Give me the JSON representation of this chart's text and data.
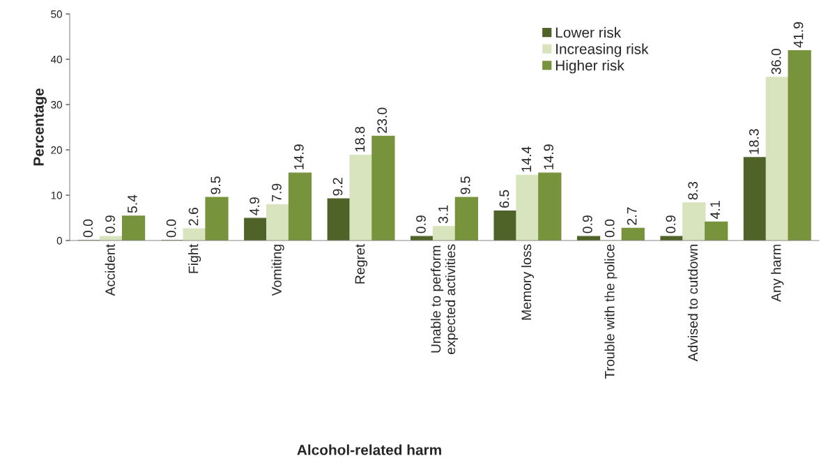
{
  "chart_data": {
    "type": "bar",
    "xlabel": "Alcohol-related harm",
    "ylabel": "Percentage",
    "categories": [
      "Accident",
      "Fight",
      "Vomiting",
      "Regret",
      "Unable to perform\nexpected activities",
      "Memory loss",
      "Trouble with the police",
      "Advised to cutdown",
      "Any harm"
    ],
    "series": [
      {
        "name": "Lower risk",
        "color": "#4f6228",
        "values": [
          0.0,
          0.0,
          4.9,
          9.2,
          0.9,
          6.5,
          0.9,
          0.9,
          18.3
        ],
        "value_labels": [
          "0.0",
          "0.0",
          "4.9",
          "9.2",
          "0.9",
          "6.5",
          "0.9",
          "0.9",
          "18.3"
        ]
      },
      {
        "name": "Increasing risk",
        "color": "#d7e4bd",
        "values": [
          0.9,
          2.6,
          7.9,
          18.8,
          3.1,
          14.4,
          0.0,
          8.3,
          36.0
        ],
        "value_labels": [
          "0.9",
          "2.6",
          "7.9",
          "18.8",
          "3.1",
          "14.4",
          "0.0",
          "8.3",
          "36.0"
        ]
      },
      {
        "name": "Higher risk",
        "color": "#77933c",
        "values": [
          5.4,
          9.5,
          14.9,
          23.0,
          9.5,
          14.9,
          2.7,
          4.1,
          41.9
        ],
        "value_labels": [
          "5.4",
          "9.5",
          "14.9",
          "23.0",
          "9.5",
          "14.9",
          "2.7",
          "4.1",
          "41.9"
        ]
      }
    ],
    "ylim": [
      0,
      50
    ],
    "yticks": [
      0,
      10,
      20,
      30,
      40,
      50
    ],
    "grid": false,
    "legend": "top right"
  }
}
